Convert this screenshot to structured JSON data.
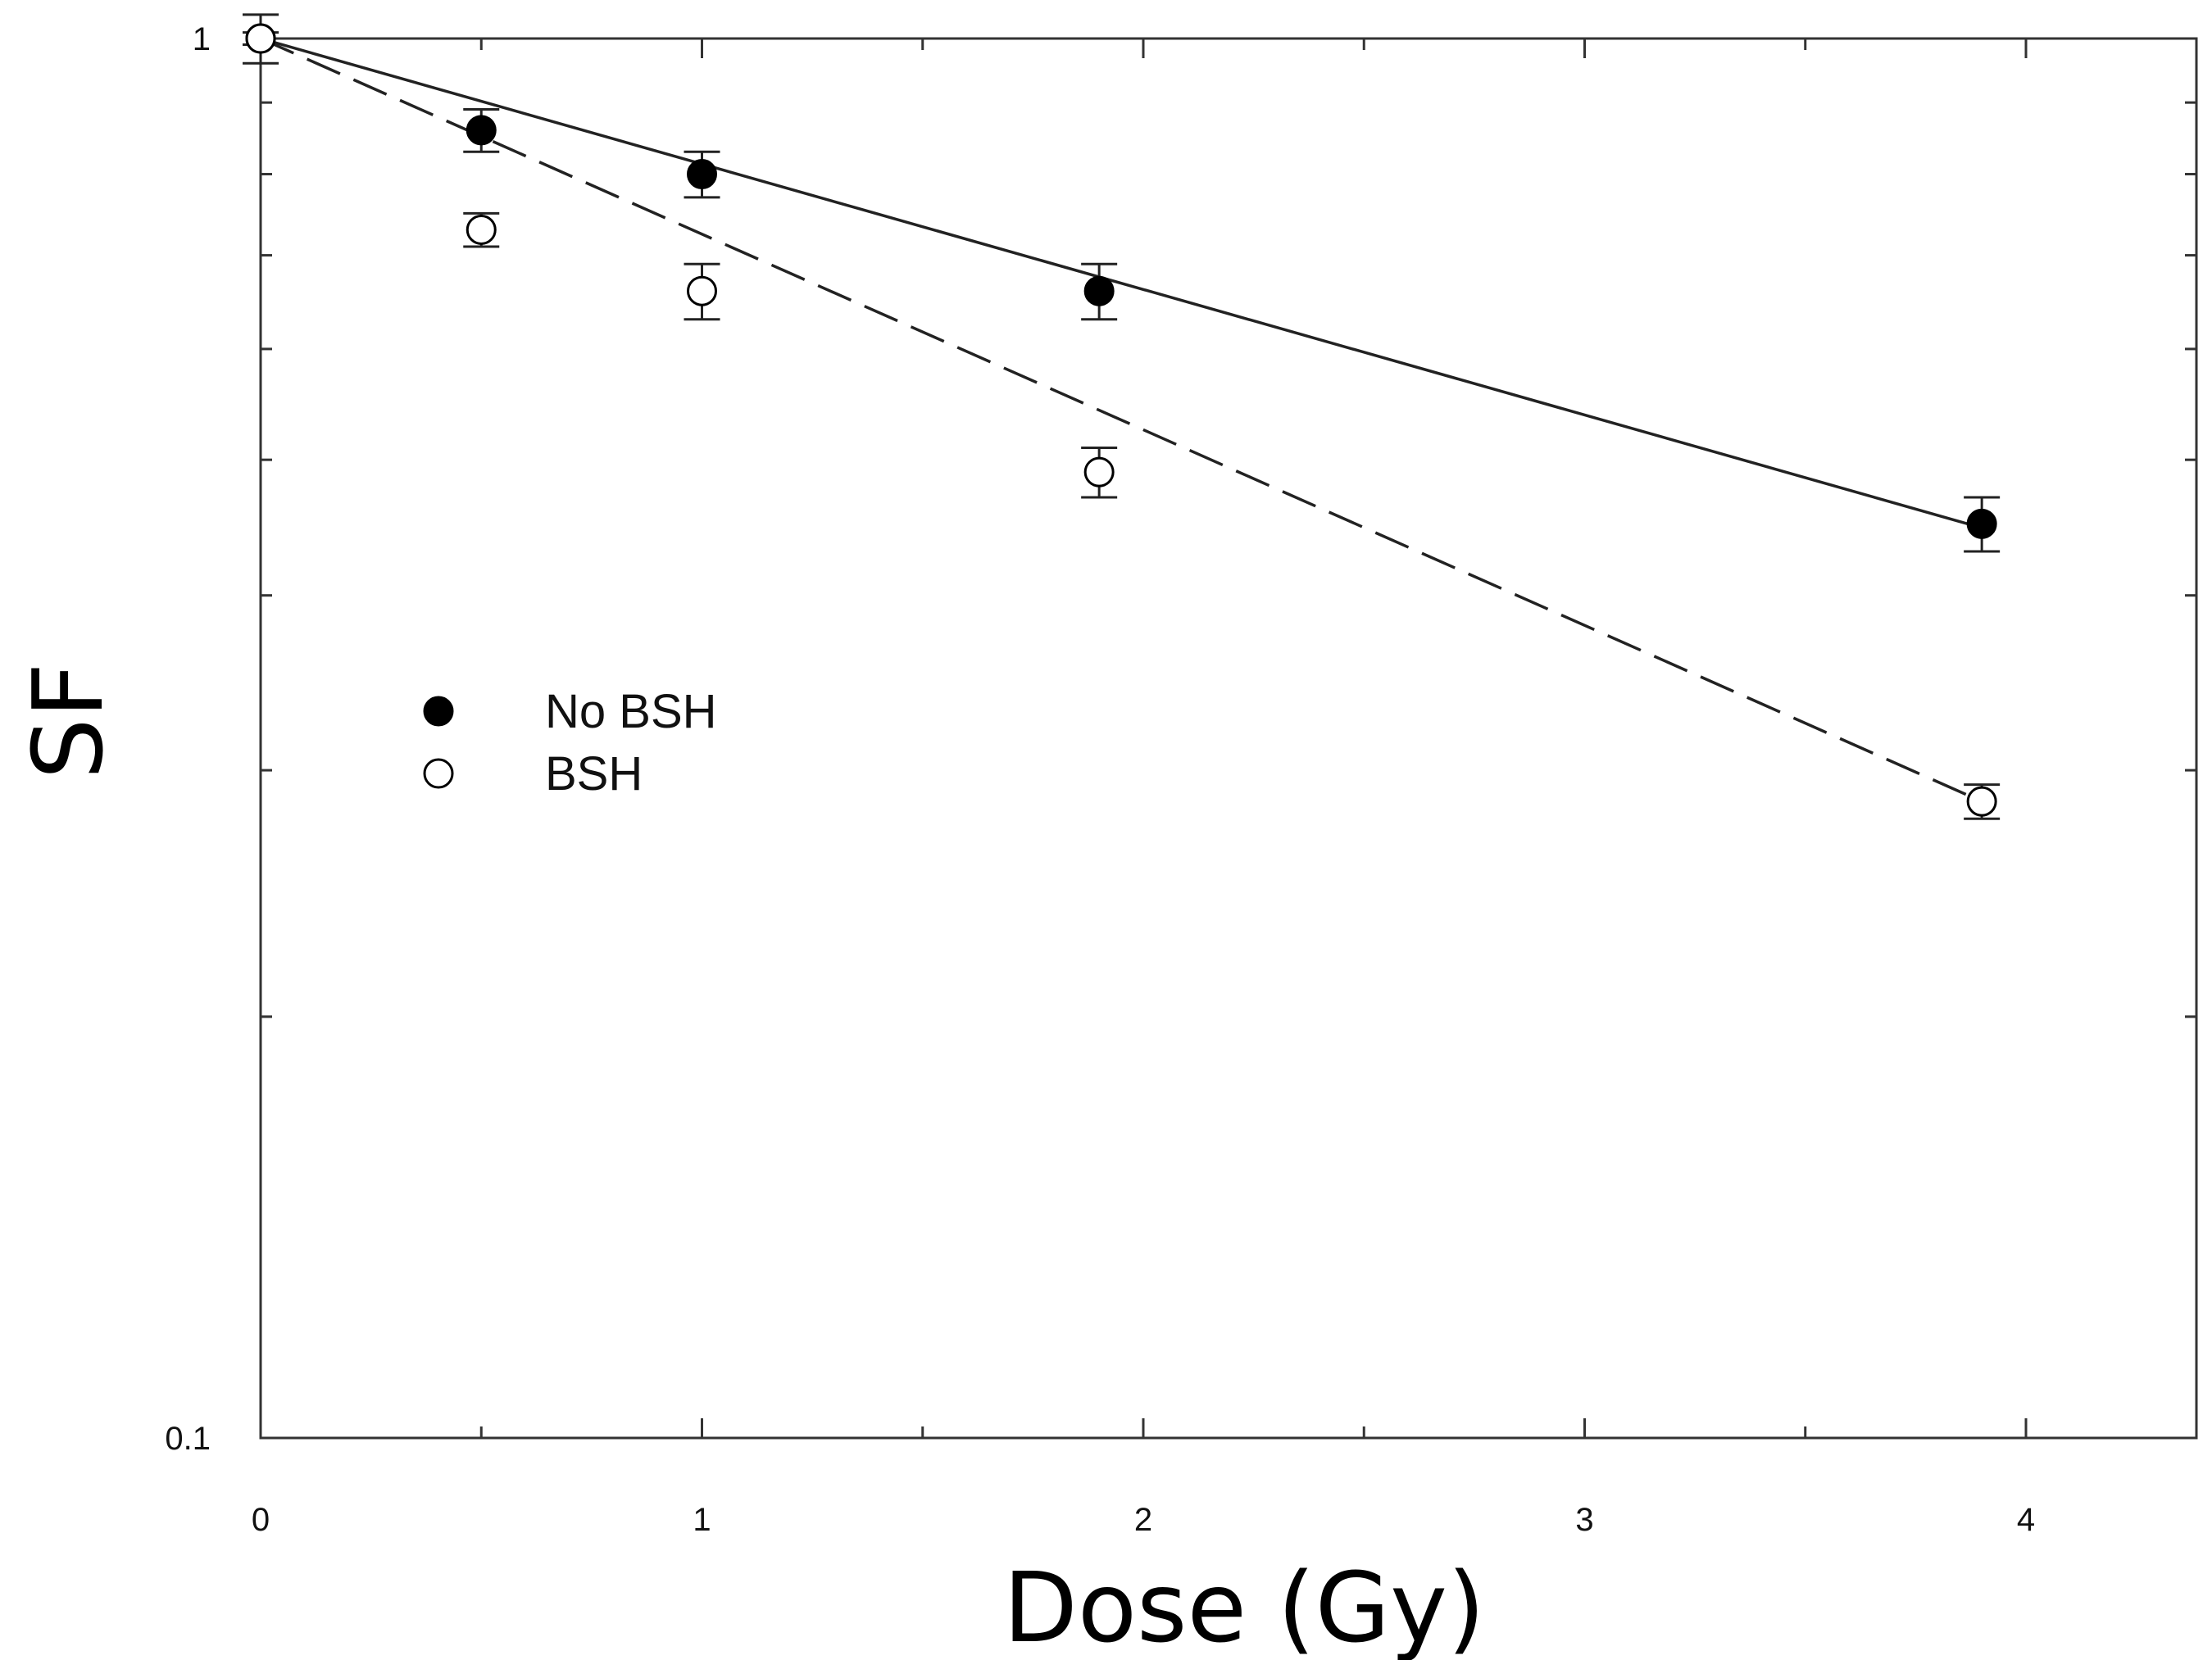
{
  "chart_data": {
    "type": "scatter",
    "xlabel": "Dose (Gy)",
    "ylabel": "SF",
    "xlim": [
      0,
      4.4
    ],
    "ylim": [
      0.1,
      1
    ],
    "y_scale": "log",
    "grid": false,
    "legend_placement": "left-middle",
    "x_ticks": [
      0,
      1,
      2,
      3,
      4
    ],
    "x_tick_labels": [
      "0",
      "1",
      "2",
      "3",
      "4"
    ],
    "x_minor_ticks": [
      0.5,
      1.5,
      2.5,
      3.5
    ],
    "y_ticks": [
      0.1,
      1
    ],
    "y_tick_labels": [
      "0.1",
      "1"
    ],
    "y_minor_ticks": [
      0.2,
      0.3,
      0.4,
      0.5,
      0.6,
      0.7,
      0.8,
      0.9
    ],
    "series": [
      {
        "name": "No BSH",
        "marker": "filled-circle",
        "line_style": "solid",
        "x": [
          0,
          0.5,
          1.0,
          1.9,
          3.9
        ],
        "y": [
          1.0,
          0.86,
          0.8,
          0.66,
          0.45
        ],
        "y_err": [
          0.04,
          0.03,
          0.03,
          0.03,
          0.02
        ],
        "fit": {
          "x": [
            0,
            3.9
          ],
          "y": [
            1.0,
            0.447
          ]
        }
      },
      {
        "name": "BSH",
        "marker": "open-circle",
        "line_style": "dashed",
        "x": [
          0,
          0.5,
          1.0,
          1.9,
          3.9
        ],
        "y": [
          1.0,
          0.73,
          0.66,
          0.49,
          0.285
        ],
        "y_err": [
          0.01,
          0.02,
          0.03,
          0.02,
          0.008
        ],
        "fit": {
          "x": [
            0,
            3.9
          ],
          "y": [
            1.0,
            0.285
          ]
        }
      }
    ]
  },
  "colors": {
    "axis": "#333333",
    "line": "#222222",
    "filled_marker": "#000000",
    "open_marker_fill": "#ffffff"
  }
}
